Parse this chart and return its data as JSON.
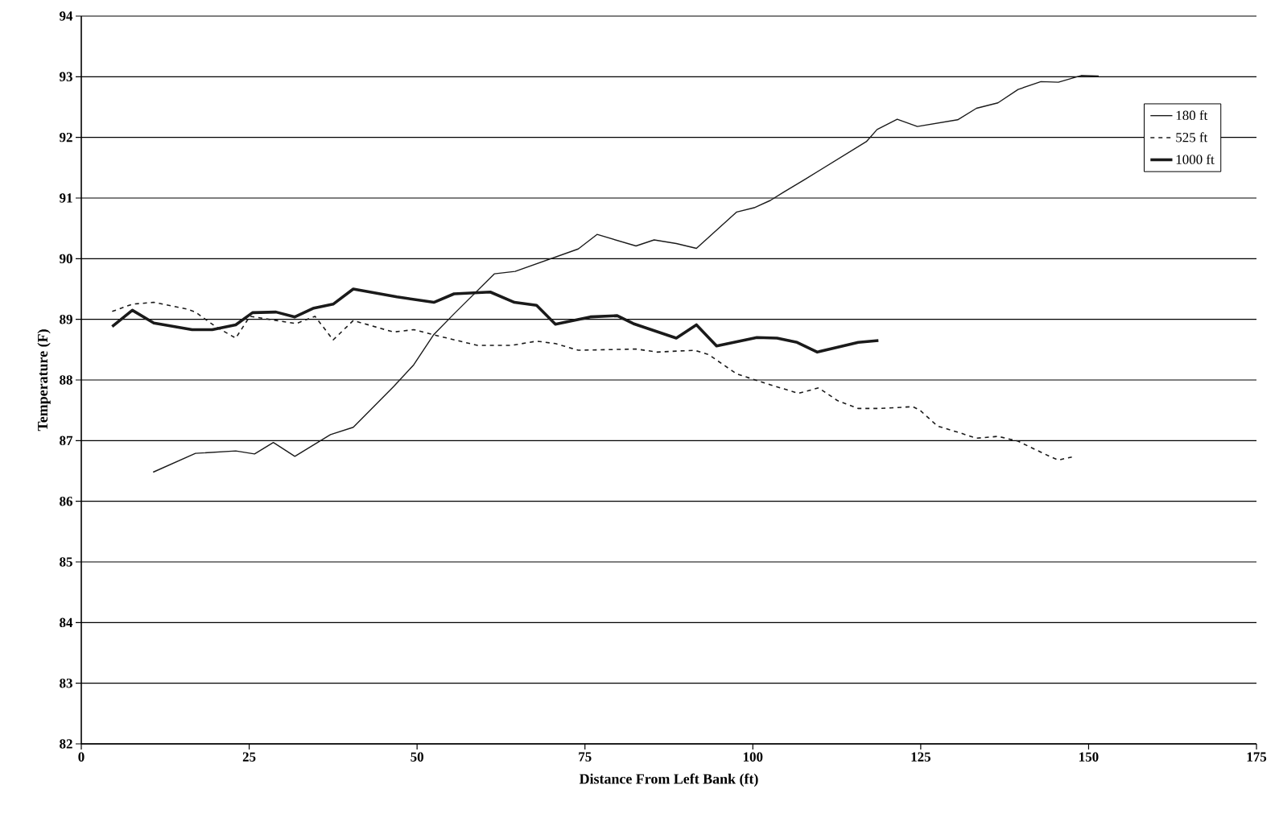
{
  "chart_data": {
    "type": "line",
    "xlabel": "Distance From Left Bank (ft)",
    "ylabel": "Temperature (F)",
    "xlim": [
      0,
      175
    ],
    "xticks": [
      0,
      25,
      50,
      75,
      100,
      125,
      150,
      175
    ],
    "ylim": [
      82,
      94
    ],
    "yticks": [
      82,
      83,
      84,
      85,
      86,
      87,
      88,
      89,
      90,
      91,
      92,
      93,
      94
    ],
    "grid": "y",
    "legend": "top right",
    "marker": "none",
    "series": [
      {
        "name": "180 ft",
        "color": "#1a1a1a",
        "line_style": "solid",
        "x": [
          10.7,
          17.0,
          23.0,
          25.8,
          28.6,
          31.8,
          37.1,
          40.5,
          46.5,
          49.5,
          52.5,
          55.5,
          61.5,
          64.6,
          74.0,
          76.8,
          82.6,
          85.3,
          88.6,
          91.6,
          97.6,
          100.2,
          102.6,
          104.5,
          107.8,
          116.9,
          118.5,
          121.5,
          124.5,
          130.5,
          133.3,
          136.5,
          139.5,
          142.9,
          145.5,
          148.9,
          151.5
        ],
        "values": [
          86.48,
          86.79,
          86.83,
          86.78,
          86.97,
          86.74,
          87.1,
          87.22,
          87.89,
          88.25,
          88.75,
          89.09,
          89.75,
          89.79,
          90.16,
          90.4,
          90.21,
          90.31,
          90.25,
          90.17,
          90.77,
          90.84,
          90.96,
          91.09,
          91.31,
          91.93,
          92.13,
          92.3,
          92.18,
          92.29,
          92.48,
          92.57,
          92.79,
          92.92,
          92.91,
          93.02,
          93.01
        ]
      },
      {
        "name": "525 ft",
        "color": "#1a1a1a",
        "line_style": "dashed",
        "x": [
          4.6,
          7.6,
          10.8,
          15.7,
          17.0,
          20.0,
          23.0,
          25.1,
          32.0,
          34.8,
          37.5,
          40.5,
          46.5,
          49.5,
          53.0,
          59.0,
          64.1,
          67.8,
          70.6,
          74.0,
          82.6,
          85.8,
          91.3,
          93.4,
          97.6,
          102.6,
          106.8,
          109.8,
          112.6,
          115.7,
          119.0,
          123.8,
          124.9,
          127.5,
          130.5,
          133.3,
          136.5,
          139.5,
          144.2,
          145.5,
          147.5
        ],
        "values": [
          89.13,
          89.25,
          89.28,
          89.17,
          89.12,
          88.88,
          88.69,
          89.05,
          88.93,
          89.05,
          88.66,
          88.98,
          88.79,
          88.83,
          88.73,
          88.57,
          88.57,
          88.64,
          88.6,
          88.49,
          88.51,
          88.46,
          88.49,
          88.42,
          88.1,
          87.92,
          87.78,
          87.87,
          87.66,
          87.53,
          87.53,
          87.56,
          87.5,
          87.24,
          87.14,
          87.04,
          87.07,
          86.99,
          86.74,
          86.68,
          86.73
        ]
      },
      {
        "name": "1000 ft",
        "color": "#1a1a1a",
        "line_style": "solid",
        "x": [
          4.6,
          7.6,
          10.8,
          16.5,
          19.5,
          23.0,
          25.5,
          29.0,
          31.8,
          34.5,
          37.5,
          40.5,
          47.0,
          52.5,
          55.5,
          60.9,
          64.5,
          67.8,
          70.6,
          75.8,
          79.8,
          82.2,
          88.6,
          91.6,
          94.6,
          100.6,
          103.6,
          106.6,
          109.6,
          115.7,
          118.7
        ],
        "values": [
          88.88,
          89.15,
          88.94,
          88.83,
          88.83,
          88.91,
          89.11,
          89.12,
          89.04,
          89.18,
          89.25,
          89.5,
          89.37,
          89.28,
          89.42,
          89.45,
          89.28,
          89.23,
          88.92,
          89.04,
          89.06,
          88.93,
          88.69,
          88.91,
          88.56,
          88.7,
          88.69,
          88.62,
          88.46,
          88.62,
          88.65
        ]
      }
    ]
  }
}
